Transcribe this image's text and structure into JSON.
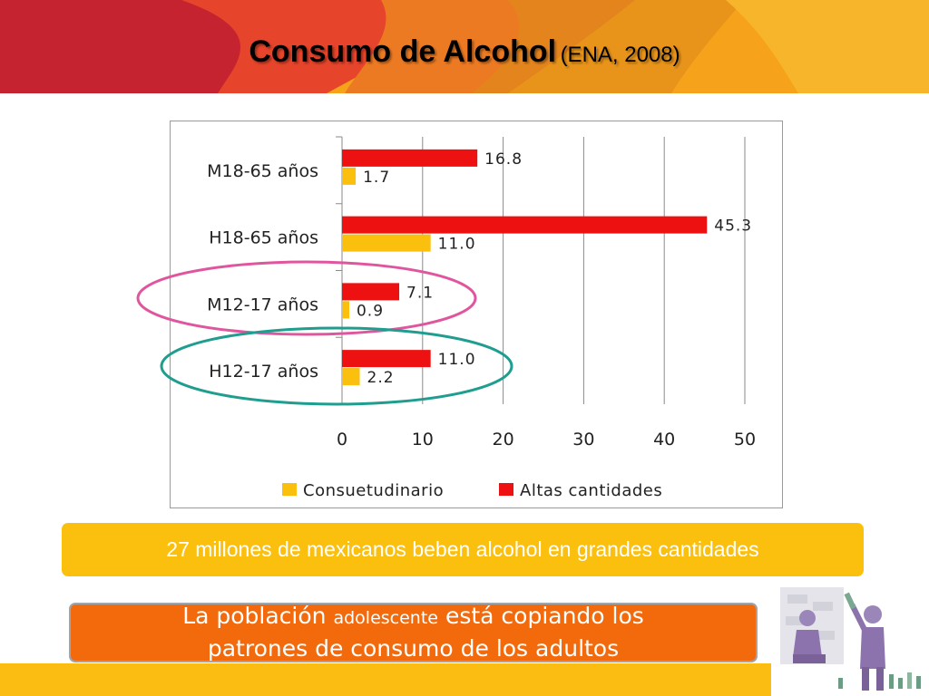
{
  "slide": {
    "title_main": "Consumo de Alcohol",
    "title_sub": "(ENA, 2008)",
    "callout_yellow": "27 millones de mexicanos beben alcohol en grandes cantidades",
    "callout_orange_1": "La población",
    "callout_orange_small": "adolescente",
    "callout_orange_2": "está copiando los",
    "callout_orange_3": "patrones de consumo de los adultos"
  },
  "colors": {
    "consuetudinario": "#fbbf0d",
    "altas_cantidades": "#ee1111",
    "pink_ellipse": "#e0569e",
    "teal_ellipse": "#1f9d8f"
  },
  "chart_data": {
    "type": "bar",
    "orientation": "horizontal",
    "categories": [
      "M18-65 años",
      "H18-65 años",
      "M12-17 años",
      "H12-17 años"
    ],
    "series": [
      {
        "name": "Altas cantidades",
        "values": [
          16.8,
          45.3,
          7.1,
          11.0
        ],
        "labels": [
          "16.8",
          "45.3",
          "7.1",
          "11.0"
        ]
      },
      {
        "name": "Consuetudinario",
        "values": [
          1.7,
          11.0,
          0.9,
          2.2
        ],
        "labels": [
          "1.7",
          "11.0",
          "0.9",
          "2.2"
        ]
      }
    ],
    "xlim": [
      0,
      50
    ],
    "xticks": [
      "0",
      "10",
      "20",
      "30",
      "40",
      "50"
    ],
    "legend": [
      "Consuetudinario",
      "Altas cantidades"
    ],
    "legend_position": "bottom",
    "grid": true
  }
}
